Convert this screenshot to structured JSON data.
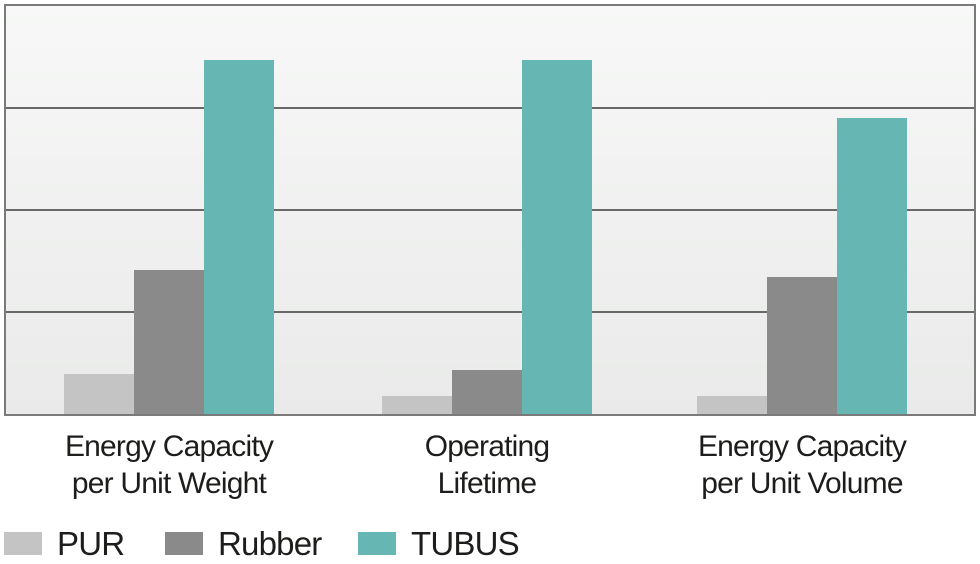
{
  "chart_data": {
    "type": "bar",
    "title": "",
    "xlabel": "",
    "ylabel": "",
    "ylim": [
      0,
      100
    ],
    "grid": true,
    "gridlines": {
      "y_values": [
        25,
        50,
        75
      ]
    },
    "legend_position": "bottom-left",
    "categories": [
      "Energy Capacity per Unit Weight",
      "Operating Lifetime",
      "Energy Capacity per Unit Volume"
    ],
    "categories_lines": [
      [
        "Energy Capacity",
        "per Unit Weight"
      ],
      [
        "Operating",
        "Lifetime"
      ],
      [
        "Energy Capacity",
        "per Unit Volume"
      ]
    ],
    "series": [
      {
        "name": "PUR",
        "color": "#c4c4c4",
        "values": [
          9.8,
          4.3,
          4.3
        ]
      },
      {
        "name": "Rubber",
        "color": "#8a8a8a",
        "values": [
          35.3,
          10.8,
          33.5
        ]
      },
      {
        "name": "TUBUS",
        "color": "#66b6b3",
        "values": [
          86.7,
          86.7,
          72.5
        ]
      }
    ],
    "colors": {
      "plot_border": "#7a7a7a",
      "gridline": "#696969",
      "plot_background_top": "#f7f8f7",
      "plot_background_bottom": "#e9eae9",
      "text": "#1d1d1b"
    }
  }
}
